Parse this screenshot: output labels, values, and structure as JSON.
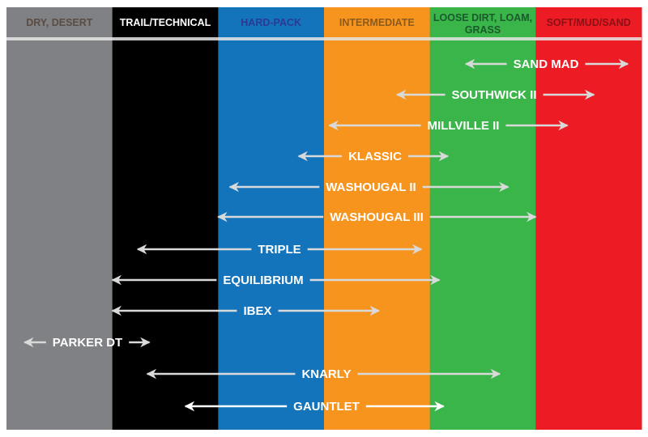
{
  "columns": [
    {
      "label": "DRY, DESERT",
      "color": "#808184",
      "text_color": "#5b4b42"
    },
    {
      "label": "TRAIL/TECHNICAL",
      "color": "#000000",
      "text_color": "#ffffff"
    },
    {
      "label": "HARD-PACK",
      "color": "#1374bc",
      "text_color": "#2b3990"
    },
    {
      "label": "INTERMEDIATE",
      "color": "#f7941d",
      "text_color": "#8b5a1c"
    },
    {
      "label": "LOOSE DIRT, LOAM,|GRASS",
      "color": "#39b54a",
      "text_color": "#1a5a2c"
    },
    {
      "label": "SOFT/MUD/SAND",
      "color": "#ed1c24",
      "text_color": "#8a1015"
    }
  ],
  "tires": [
    {
      "name": "SAND MAD",
      "range": [
        4.34,
        5.87
      ]
    },
    {
      "name": "SOUTHWICK II",
      "range": [
        3.69,
        5.55
      ]
    },
    {
      "name": "MILLVILLE II",
      "range": [
        3.05,
        5.3
      ]
    },
    {
      "name": "KLASSIC",
      "range": [
        2.76,
        4.17
      ]
    },
    {
      "name": "WASHOUGAL II",
      "range": [
        2.11,
        4.74
      ]
    },
    {
      "name": "WASHOUGAL III",
      "range": [
        2.0,
        5.0
      ]
    },
    {
      "name": "TRIPLE",
      "range": [
        1.24,
        3.92
      ]
    },
    {
      "name": "EQUILIBRIUM",
      "range": [
        1.0,
        4.09
      ]
    },
    {
      "name": "IBEX",
      "range": [
        1.0,
        3.52
      ]
    },
    {
      "name": "PARKER DT",
      "range": [
        0.17,
        1.35
      ]
    },
    {
      "name": "KNARLY",
      "range": [
        1.33,
        4.66
      ]
    },
    {
      "name": "GAUNTLET",
      "range": [
        1.69,
        4.13
      ],
      "highlight": true
    }
  ]
}
